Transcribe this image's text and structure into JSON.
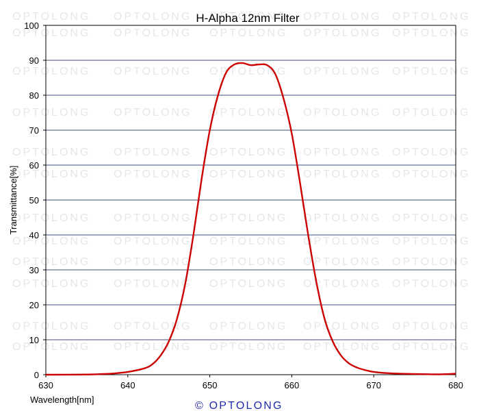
{
  "chart_data": {
    "type": "line",
    "title": "H-Alpha 12nm Filter",
    "xlabel": "Wavelength[nm]",
    "ylabel": "Transmittance[%]",
    "xlim": [
      630,
      680
    ],
    "ylim": [
      0,
      100
    ],
    "x_ticks": [
      630,
      640,
      650,
      660,
      670,
      680
    ],
    "y_ticks": [
      0,
      10,
      20,
      30,
      40,
      50,
      60,
      70,
      80,
      90,
      100
    ],
    "grid": "horizontal",
    "series": [
      {
        "color": "#cc0000",
        "points": [
          [
            630,
            0
          ],
          [
            635,
            0.05
          ],
          [
            637,
            0.2
          ],
          [
            638,
            0.3
          ],
          [
            640,
            0.8
          ],
          [
            642,
            1.8
          ],
          [
            643,
            3.0
          ],
          [
            644,
            5.5
          ],
          [
            645,
            9.5
          ],
          [
            646,
            16
          ],
          [
            647,
            26
          ],
          [
            648,
            40
          ],
          [
            649,
            56
          ],
          [
            650,
            70
          ],
          [
            651,
            80
          ],
          [
            652,
            86.5
          ],
          [
            653,
            88.8
          ],
          [
            654,
            89.2
          ],
          [
            655,
            88.6
          ],
          [
            656,
            88.8
          ],
          [
            657,
            88.6
          ],
          [
            658,
            86
          ],
          [
            659,
            79
          ],
          [
            660,
            69
          ],
          [
            661,
            55
          ],
          [
            662,
            40
          ],
          [
            663,
            26.5
          ],
          [
            664,
            16
          ],
          [
            665,
            9.5
          ],
          [
            666,
            5.5
          ],
          [
            667,
            3.2
          ],
          [
            668,
            2.0
          ],
          [
            669,
            1.3
          ],
          [
            670,
            0.8
          ],
          [
            672,
            0.4
          ],
          [
            675,
            0.2
          ],
          [
            678,
            0.1
          ],
          [
            680,
            0.3
          ]
        ]
      }
    ],
    "gridline_color": "#3a4f7a"
  },
  "watermark": "OPTOLONG",
  "copyright": "© OPTOLONG",
  "copyright_color": "#1f2aa8"
}
